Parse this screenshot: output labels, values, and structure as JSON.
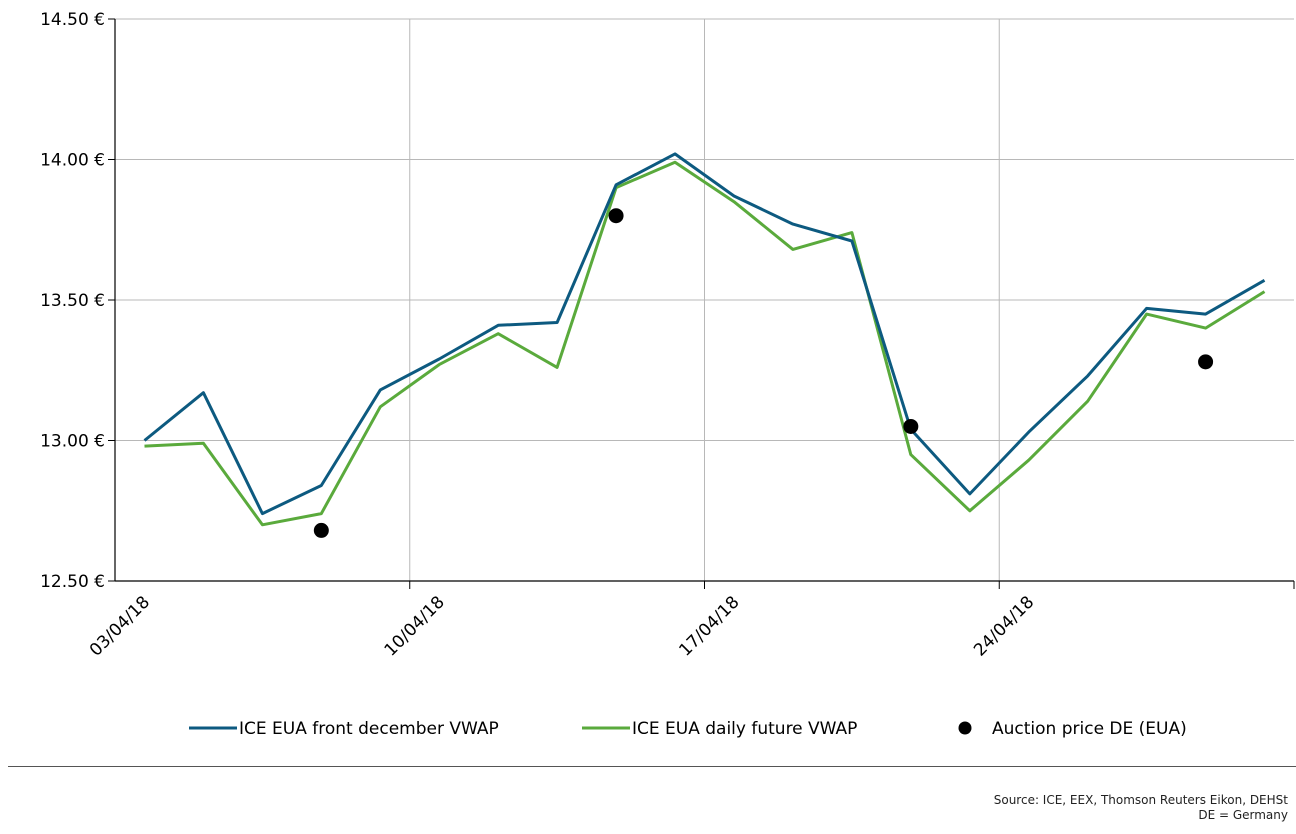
{
  "chart_data": {
    "type": "line",
    "x": [
      "03/04/18",
      "04/04/18",
      "05/04/18",
      "06/04/18",
      "09/04/18",
      "10/04/18",
      "11/04/18",
      "12/04/18",
      "13/04/18",
      "16/04/18",
      "17/04/18",
      "18/04/18",
      "19/04/18",
      "20/04/18",
      "23/04/18",
      "24/04/18",
      "25/04/18",
      "26/04/18",
      "27/04/18",
      "30/04/18"
    ],
    "x_ticks": [
      {
        "index": 0,
        "label": "03/04/18"
      },
      {
        "index": 5,
        "label": "10/04/18"
      },
      {
        "index": 10,
        "label": "17/04/18"
      },
      {
        "index": 15,
        "label": "24/04/18"
      }
    ],
    "ylim": [
      12.5,
      14.5
    ],
    "y_ticks": [
      {
        "value": 12.5,
        "label": "12.50 €"
      },
      {
        "value": 13.0,
        "label": "13.00 €"
      },
      {
        "value": 13.5,
        "label": "13.50 €"
      },
      {
        "value": 14.0,
        "label": "14.00 €"
      },
      {
        "value": 14.5,
        "label": "14.50 €"
      }
    ],
    "grid": true,
    "legend_position": "bottom",
    "series": [
      {
        "name": "ICE EUA front december VWAP",
        "color": "#0d5a80",
        "values": [
          13.0,
          13.17,
          12.74,
          12.84,
          13.18,
          13.29,
          13.41,
          13.42,
          13.91,
          14.02,
          13.87,
          13.77,
          13.71,
          13.04,
          12.81,
          13.03,
          13.23,
          13.47,
          13.45,
          13.57
        ]
      },
      {
        "name": "ICE EUA daily future VWAP",
        "color": "#5aaa3c",
        "values": [
          12.98,
          12.99,
          12.7,
          12.74,
          13.12,
          13.27,
          13.38,
          13.26,
          13.9,
          13.99,
          13.85,
          13.68,
          13.74,
          12.95,
          12.75,
          12.93,
          13.14,
          13.45,
          13.4,
          13.53
        ]
      }
    ],
    "points": {
      "name": "Auction price DE (EUA)",
      "color": "#000000",
      "data": [
        {
          "x": "06/04/18",
          "y": 12.68
        },
        {
          "x": "13/04/18",
          "y": 13.8
        },
        {
          "x": "20/04/18",
          "y": 13.05
        },
        {
          "x": "27/04/18",
          "y": 13.28
        }
      ]
    }
  },
  "source": {
    "line1": "Source: ICE, EEX, Thomson Reuters Eikon, DEHSt",
    "line2": "DE = Germany"
  }
}
